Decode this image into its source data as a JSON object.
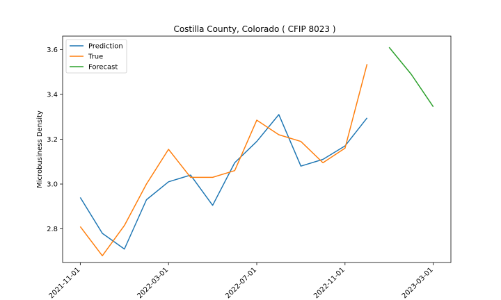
{
  "chart_data": {
    "type": "line",
    "title": "Costilla County, Colorado ( CFIP 8023 )",
    "xlabel": "",
    "ylabel": "Microbusiness Density",
    "x_ticks": [
      "2021-11-01",
      "2022-03-01",
      "2022-07-01",
      "2022-11-01",
      "2023-03-01"
    ],
    "y_ticks": [
      "2.8",
      "3.0",
      "3.2",
      "3.4",
      "3.6"
    ],
    "ylim": [
      2.65,
      3.66
    ],
    "xlim_months": [
      -0.8,
      16.8
    ],
    "legend_position": "top-left",
    "series": [
      {
        "name": "Prediction",
        "color": "#1f77b4",
        "x": [
          "2021-11-01",
          "2021-12-01",
          "2022-01-01",
          "2022-02-01",
          "2022-03-01",
          "2022-04-01",
          "2022-05-01",
          "2022-06-01",
          "2022-07-01",
          "2022-08-01",
          "2022-09-01",
          "2022-10-01",
          "2022-11-01",
          "2022-12-01"
        ],
        "values": [
          2.94,
          2.78,
          2.71,
          2.93,
          3.01,
          3.04,
          2.905,
          3.095,
          3.19,
          3.31,
          3.08,
          3.11,
          3.17,
          3.295
        ]
      },
      {
        "name": "True",
        "color": "#ff7f0e",
        "x": [
          "2021-11-01",
          "2021-12-01",
          "2022-01-01",
          "2022-02-01",
          "2022-03-01",
          "2022-04-01",
          "2022-05-01",
          "2022-06-01",
          "2022-07-01",
          "2022-08-01",
          "2022-09-01",
          "2022-10-01",
          "2022-11-01",
          "2022-12-01"
        ],
        "values": [
          2.81,
          2.68,
          2.815,
          3.0,
          3.155,
          3.03,
          3.03,
          3.06,
          3.285,
          3.22,
          3.19,
          3.095,
          3.16,
          3.535
        ]
      },
      {
        "name": "Forecast",
        "color": "#2ca02c",
        "x": [
          "2023-01-01",
          "2023-02-01",
          "2023-03-01"
        ],
        "values": [
          3.61,
          3.49,
          3.345
        ]
      }
    ]
  }
}
